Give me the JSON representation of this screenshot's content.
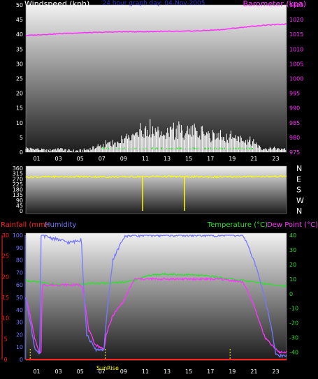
{
  "colors": {
    "background": "#000000",
    "windspeed": "#ffffff",
    "barometer": "#ff33ff",
    "wind_direction": "#ffff00",
    "rainfall": "#ff2222",
    "humidity": "#7777ff",
    "temperature": "#33dd33",
    "dew_point": "#ff33ff",
    "markers": "#ffff00"
  },
  "chart_data": [
    {
      "id": "wind-pressure",
      "type": "line",
      "title": "24 hour graph day: 04-Nov-2005",
      "xlabel": "",
      "x_ticks": [
        "01",
        "03",
        "05",
        "07",
        "09",
        "11",
        "13",
        "15",
        "17",
        "19",
        "21",
        "23"
      ],
      "ylabel_left": "Windspeed (kph)",
      "ylim_left": [
        0,
        50
      ],
      "y_ticks_left": [
        0,
        5,
        10,
        15,
        20,
        25,
        30,
        35,
        40,
        45,
        50
      ],
      "ylabel_right": "Barometer (kpa)",
      "ylim_right": [
        975,
        1025
      ],
      "y_ticks_right": [
        975,
        980,
        985,
        990,
        995,
        1000,
        1005,
        1010,
        1015,
        1020,
        1025
      ],
      "grid": false,
      "series": [
        {
          "name": "Windspeed",
          "axis": "left",
          "x": [
            0,
            1,
            2,
            3,
            4,
            5,
            6,
            7,
            8,
            9,
            10,
            11,
            12,
            13,
            14,
            15,
            16,
            17,
            18,
            19,
            20,
            21,
            22,
            23
          ],
          "values": [
            1,
            1,
            0,
            1,
            0,
            0,
            1,
            2,
            3,
            4,
            6,
            7,
            9,
            8,
            8,
            9,
            8,
            7,
            7,
            6,
            5,
            3,
            1,
            1
          ],
          "peaks": [
            2,
            2,
            1,
            2,
            1,
            1,
            2,
            4,
            5,
            6,
            9,
            12,
            11,
            10,
            13,
            10,
            10,
            9,
            8,
            8,
            6,
            5,
            2,
            2
          ]
        },
        {
          "name": "Barometer",
          "axis": "right",
          "x": [
            0,
            1,
            2,
            3,
            4,
            5,
            6,
            7,
            8,
            9,
            10,
            11,
            12,
            13,
            14,
            15,
            16,
            17,
            18,
            19,
            20,
            21,
            22,
            23,
            24
          ],
          "values": [
            1014.6,
            1014.8,
            1015.0,
            1015.2,
            1015.4,
            1015.5,
            1015.6,
            1015.7,
            1015.8,
            1015.9,
            1015.9,
            1015.9,
            1016.0,
            1016.0,
            1016.0,
            1016.1,
            1016.2,
            1016.4,
            1016.6,
            1017.0,
            1017.4,
            1017.8,
            1018.1,
            1018.3,
            1018.5
          ]
        }
      ]
    },
    {
      "id": "wind-direction",
      "type": "line",
      "x_ticks": [
        "01",
        "03",
        "05",
        "07",
        "09",
        "11",
        "13",
        "15",
        "17",
        "19",
        "21",
        "23"
      ],
      "ylim": [
        0,
        360
      ],
      "y_ticks": [
        0,
        45,
        90,
        135,
        180,
        225,
        270,
        315,
        360
      ],
      "y_ticks_right": [
        "N",
        "W",
        "S",
        "E",
        "N"
      ],
      "series": [
        {
          "name": "Wind direction",
          "x": [
            0,
            2,
            4,
            6,
            8,
            10,
            12,
            14,
            16,
            18,
            20,
            22,
            24
          ],
          "values": [
            285,
            287,
            288,
            288,
            286,
            288,
            290,
            289,
            287,
            286,
            288,
            290,
            292
          ],
          "dips": [
            {
              "x": 10.75,
              "value": 0
            },
            {
              "x": 14.6,
              "value": 0
            }
          ]
        }
      ]
    },
    {
      "id": "rain-humidity-temp",
      "type": "line",
      "x_ticks": [
        "01",
        "03",
        "05",
        "07",
        "09",
        "11",
        "13",
        "15",
        "17",
        "19",
        "21",
        "23"
      ],
      "annotations": [
        "Sun",
        "Rise"
      ],
      "ylabel_left_1": "Rainfall (mm)",
      "ylim_left_1": [
        0,
        30
      ],
      "y_ticks_left_1": [
        0,
        5,
        10,
        15,
        20,
        25,
        30
      ],
      "ylabel_left_2": "Humidity",
      "ylim_left_2": [
        0,
        100
      ],
      "y_ticks_left_2": [
        0,
        10,
        20,
        30,
        40,
        50,
        60,
        70,
        80,
        90,
        100
      ],
      "ylabel_right_1": "Temperature (°C)",
      "ylabel_right_2": "Dew Point (°C)",
      "ylim_right": [
        -45,
        40
      ],
      "y_ticks_right": [
        -40,
        -30,
        -20,
        -10,
        0,
        10,
        20,
        30,
        40
      ],
      "series": [
        {
          "name": "Rainfall",
          "axis": "left_1",
          "x": [
            0,
            24
          ],
          "values": [
            0,
            0
          ]
        },
        {
          "name": "Humidity",
          "axis": "left_2",
          "x": [
            0,
            0.4,
            0.8,
            1.2,
            1.3,
            1.4,
            4,
            5,
            5.1,
            5.3,
            5.6,
            6.4,
            7.2,
            7.3,
            7.5,
            8,
            9,
            9.5,
            10,
            18,
            20,
            21,
            22,
            22.5,
            23,
            23.3,
            23.8
          ],
          "values": [
            50,
            30,
            10,
            4,
            4,
            100,
            94,
            96,
            100,
            60,
            20,
            8,
            8,
            20,
            40,
            80,
            98,
            100,
            100,
            100,
            100,
            80,
            50,
            30,
            5,
            3,
            3
          ]
        },
        {
          "name": "Temperature",
          "axis": "right",
          "x": [
            0,
            1,
            2,
            3,
            4,
            5,
            6,
            7,
            8,
            9,
            10,
            11,
            12,
            13,
            14,
            15,
            16,
            17,
            18,
            19,
            20,
            21,
            22,
            23,
            24
          ],
          "values": [
            9,
            8,
            7,
            6,
            6,
            6.5,
            7,
            7,
            7.5,
            8,
            9,
            12,
            13,
            13.5,
            13,
            13,
            12.5,
            12,
            11,
            10,
            9,
            8,
            7,
            6,
            5
          ]
        },
        {
          "name": "Dew Point",
          "axis": "right",
          "x": [
            0,
            0.4,
            0.8,
            1.2,
            1.4,
            1.5,
            5,
            5.2,
            5.5,
            5.8,
            6.4,
            7.2,
            7.4,
            8,
            9,
            10,
            18,
            20,
            21,
            22,
            23,
            23.3,
            23.8
          ],
          "values": [
            -2,
            -15,
            -30,
            -40,
            -40,
            6,
            6,
            5,
            -10,
            -25,
            -35,
            -38,
            -28,
            -15,
            -5,
            10,
            10,
            8,
            -8,
            -30,
            -38,
            -40,
            -40
          ]
        }
      ]
    }
  ]
}
